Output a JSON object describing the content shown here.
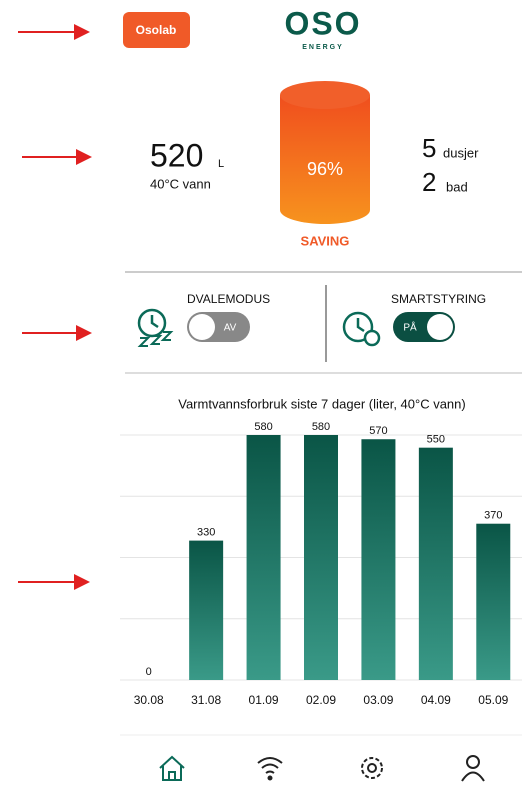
{
  "header": {
    "button": "Osolab",
    "logo": "OSO",
    "logo_sub": "ENERGY"
  },
  "stats": {
    "volume": "520",
    "volume_unit": "L",
    "volume_note": "40°C vann",
    "tank_percent": "96%",
    "tank_label": "SAVING",
    "showers": "5",
    "showers_label": "dusjer",
    "baths": "2",
    "baths_label": "bad"
  },
  "toggles": [
    {
      "label": "DVALEMODUS",
      "state": "AV"
    },
    {
      "label": "SMARTSTYRING",
      "state": "PÅ"
    }
  ],
  "chart_data": {
    "type": "bar",
    "title": "Varmtvannsforbruk siste 7 dager (liter, 40°C vann)",
    "categories": [
      "30.08",
      "31.08",
      "01.09",
      "02.09",
      "03.09",
      "04.09",
      "05.09"
    ],
    "values": [
      0,
      330,
      580,
      580,
      570,
      550,
      370
    ],
    "ylim": [
      0,
      580
    ],
    "yticks": [
      0,
      145,
      290,
      435,
      580
    ],
    "grid": true
  }
}
